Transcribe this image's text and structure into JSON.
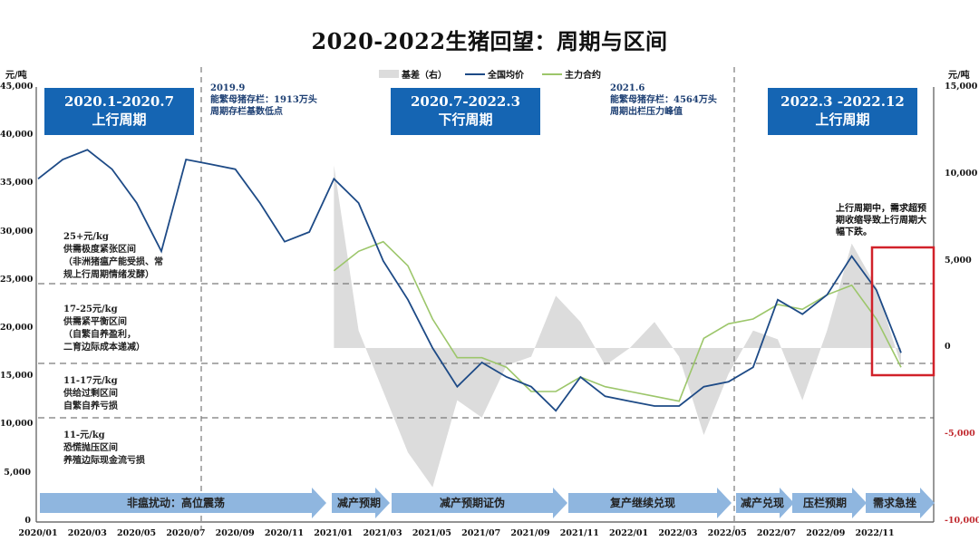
{
  "title": "2020-2022生猪回望：周期与区间",
  "axes": {
    "left_unit": "元/吨",
    "right_unit": "元/吨",
    "left_ticks": [
      "45,000",
      "40,000",
      "35,000",
      "30,000",
      "25,000",
      "20,000",
      "15,000",
      "10,000",
      "5,000",
      "0"
    ],
    "right_ticks": [
      "15,000",
      "10,000",
      "5,000",
      "0",
      "-5,000",
      "-10,000"
    ],
    "x_ticks": [
      "2020/01",
      "2020/03",
      "2020/05",
      "2020/07",
      "2020/09",
      "2020/11",
      "2021/01",
      "2021/03",
      "2021/05",
      "2021/07",
      "2021/09",
      "2021/11",
      "2022/01",
      "2022/03",
      "2022/05",
      "2022/07",
      "2022/09",
      "2022/11"
    ]
  },
  "legend": {
    "basis": "基差（右）",
    "national": "全国均价",
    "futures": "主力合约"
  },
  "colors": {
    "national": "#1d4a86",
    "futures": "#9cc66a",
    "basis": "#dcdcdc",
    "box": "#1565b3",
    "highlight": "#d1222a",
    "arrow": "#8fb6df"
  },
  "cycles": [
    {
      "range": "2020.1-2020.7",
      "label": "上行周期"
    },
    {
      "range": "2020.7-2022.3",
      "label": "下行周期"
    },
    {
      "range": "2022.3 -2022.12",
      "label": "上行周期"
    }
  ],
  "notes": [
    {
      "date": "2019.9",
      "line1": "能繁母猪存栏：1913万头",
      "line2": "周期存栏基数低点"
    },
    {
      "date": "2021.6",
      "line1": "能繁母猪存栏：4564万头",
      "line2": "周期出栏压力峰值"
    }
  ],
  "zones": [
    {
      "price": "25+元/kg",
      "name": "供需极度紧张区间",
      "desc1": "（非洲猪瘟产能受损、常",
      "desc2": "规上行周期情绪发酵）"
    },
    {
      "price": "17-25元/kg",
      "name": "供需紧平衡区间",
      "desc1": "（自繁自养盈利，",
      "desc2": "二育边际成本递减）"
    },
    {
      "price": "11-17元/kg",
      "name": "供给过剩区间",
      "desc1": "自繁自养亏损",
      "desc2": ""
    },
    {
      "price": "11-元/kg",
      "name": "恐慌抛压区间",
      "desc1": "养殖边际现金流亏损",
      "desc2": ""
    }
  ],
  "callout": "上行周期中，需求超预期收缩导致上行周期大幅下跌。",
  "phases": [
    "非瘟扰动：高位震荡",
    "减产预期",
    "减产预期证伪",
    "复产继续兑现",
    "减产兑现",
    "压栏预期",
    "需求急挫"
  ],
  "chart_data": {
    "type": "line",
    "title": "2020-2022生猪回望：周期与区间",
    "xlabel": "",
    "ylabel": "元/吨",
    "ylabel_right": "元/吨",
    "ylim": [
      0,
      45000
    ],
    "ylim_right": [
      -10000,
      15000
    ],
    "grid": false,
    "legend_position": "top",
    "x": [
      "2020/01",
      "2020/02",
      "2020/03",
      "2020/04",
      "2020/05",
      "2020/06",
      "2020/07",
      "2020/08",
      "2020/09",
      "2020/10",
      "2020/11",
      "2020/12",
      "2021/01",
      "2021/02",
      "2021/03",
      "2021/04",
      "2021/05",
      "2021/06",
      "2021/07",
      "2021/08",
      "2021/09",
      "2021/10",
      "2021/11",
      "2021/12",
      "2022/01",
      "2022/02",
      "2022/03",
      "2022/04",
      "2022/05",
      "2022/06",
      "2022/07",
      "2022/08",
      "2022/09",
      "2022/10",
      "2022/11",
      "2022/12"
    ],
    "series": [
      {
        "name": "全国均价",
        "axis": "left",
        "values": [
          35500,
          37500,
          38500,
          36500,
          33000,
          28000,
          37500,
          37000,
          36500,
          33000,
          29000,
          30000,
          35500,
          33000,
          27000,
          23000,
          18000,
          14000,
          16500,
          15000,
          14000,
          11500,
          15000,
          13000,
          12500,
          12000,
          12000,
          14000,
          14500,
          16000,
          23000,
          21500,
          23500,
          27500,
          24000,
          17500
        ]
      },
      {
        "name": "主力合约",
        "axis": "left",
        "values": [
          null,
          null,
          null,
          null,
          null,
          null,
          null,
          null,
          null,
          null,
          null,
          null,
          26000,
          28000,
          29000,
          26500,
          21000,
          17000,
          17000,
          16000,
          13500,
          13500,
          15000,
          14000,
          13500,
          13000,
          12500,
          19000,
          20500,
          21000,
          22500,
          22000,
          23500,
          24500,
          21000,
          16000
        ]
      },
      {
        "name": "基差（右）",
        "axis": "right",
        "values": [
          null,
          null,
          null,
          null,
          null,
          null,
          null,
          null,
          null,
          null,
          null,
          null,
          10500,
          1000,
          -2500,
          -6000,
          -8000,
          -3000,
          -4000,
          -1000,
          -500,
          3000,
          1500,
          -1000,
          0,
          1500,
          -500,
          -5000,
          -1500,
          1000,
          500,
          -3000,
          1000,
          6000,
          3500,
          -1000
        ]
      }
    ],
    "reference_lines": {
      "horizontal": [
        25000,
        17000,
        11000
      ],
      "vertical": [
        "2020/08",
        "2022/05"
      ]
    },
    "annotations": [
      "2020.1-2020.7 上行周期",
      "2020.7-2022.3 下行周期",
      "2022.3 -2022.12 上行周期",
      "2019.9 能繁母猪存栏：1913万头 周期存栏基数低点",
      "2021.6 能繁母猪存栏：4564万头 周期出栏压力峰值",
      "上行周期中，需求超预期收缩导致上行周期大幅下跌。"
    ]
  }
}
